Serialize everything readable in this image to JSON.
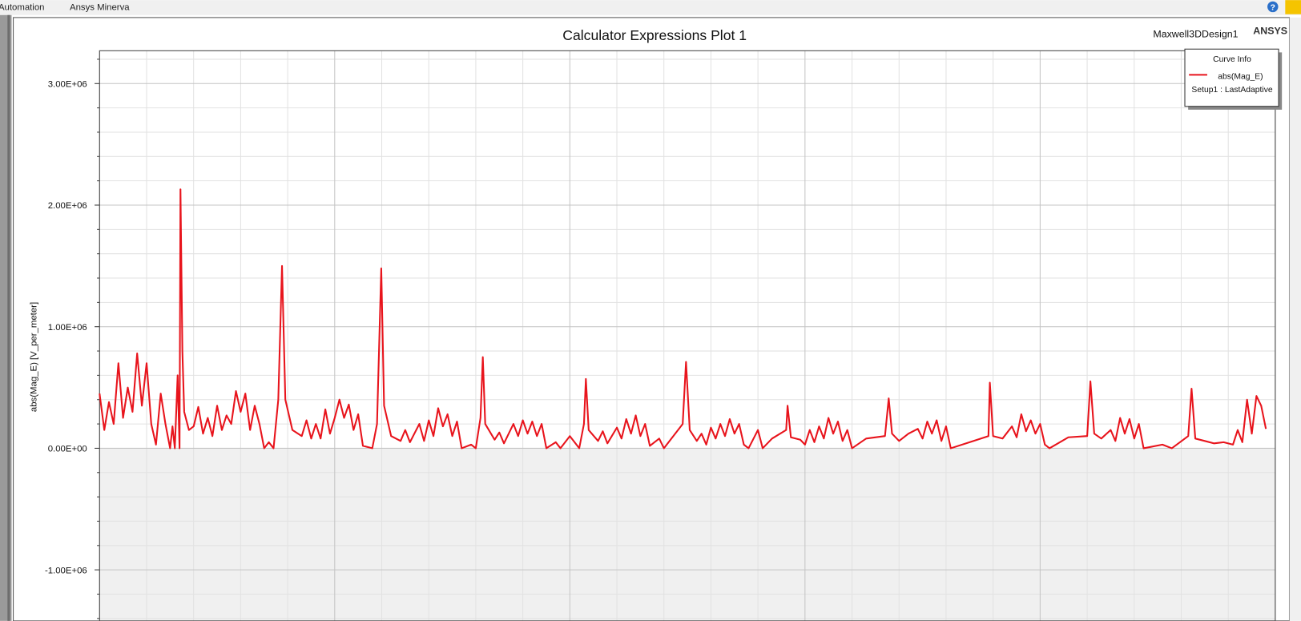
{
  "ui": {
    "menu": [
      "Automation",
      "Ansys Minerva"
    ],
    "design": "Maxwell3DDesign1",
    "logo": "ANSYS"
  },
  "chart_data": {
    "type": "line",
    "title": "Calculator Expressions Plot 1",
    "y_label": "abs(Mag_E) [V_per_meter]",
    "legend_title": "Curve Info",
    "grid": true,
    "ylim": [
      -1420000,
      3270000
    ],
    "yticks": [
      {
        "value": -1000000,
        "label": "-1.00E+06"
      },
      {
        "value": 0,
        "label": "0.00E+00"
      },
      {
        "value": 1000000,
        "label": "1.00E+06"
      },
      {
        "value": 2000000,
        "label": "2.00E+06"
      },
      {
        "value": 3000000,
        "label": "3.00E+06"
      }
    ],
    "yminor": [
      -1400000,
      -1200000,
      -800000,
      -600000,
      -400000,
      -200000,
      200000,
      400000,
      600000,
      800000,
      1200000,
      1400000,
      1600000,
      1800000,
      2200000,
      2400000,
      2600000,
      2800000,
      3200000
    ],
    "xlim": [
      0,
      25
    ],
    "xticks": [
      0,
      5,
      10,
      15,
      20,
      25
    ],
    "xminor": [
      1,
      2,
      3,
      4,
      6,
      7,
      8,
      9,
      11,
      12,
      13,
      14,
      16,
      17,
      18,
      19,
      21,
      22,
      23,
      24
    ],
    "below_zero_fill": "#f0f0f0",
    "x": [
      0,
      0.1,
      0.2,
      0.3,
      0.4,
      0.5,
      0.6,
      0.7,
      0.8,
      0.9,
      1.0,
      1.1,
      1.2,
      1.3,
      1.4,
      1.5,
      1.55,
      1.6,
      1.66,
      1.7,
      1.72,
      1.76,
      1.8,
      1.9,
      2.0,
      2.1,
      2.2,
      2.3,
      2.4,
      2.5,
      2.6,
      2.7,
      2.8,
      2.9,
      3.0,
      3.1,
      3.2,
      3.3,
      3.4,
      3.5,
      3.6,
      3.7,
      3.8,
      3.88,
      3.95,
      4.1,
      4.3,
      4.4,
      4.5,
      4.6,
      4.7,
      4.8,
      4.9,
      5.0,
      5.1,
      5.2,
      5.3,
      5.4,
      5.5,
      5.6,
      5.8,
      5.9,
      5.99,
      6.05,
      6.2,
      6.4,
      6.5,
      6.6,
      6.8,
      6.9,
      7.0,
      7.1,
      7.2,
      7.3,
      7.4,
      7.5,
      7.6,
      7.7,
      7.9,
      8.0,
      8.1,
      8.15,
      8.2,
      8.4,
      8.5,
      8.6,
      8.8,
      8.9,
      9.0,
      9.1,
      9.2,
      9.3,
      9.4,
      9.5,
      9.7,
      9.8,
      10.0,
      10.2,
      10.3,
      10.34,
      10.4,
      10.6,
      10.7,
      10.8,
      11.0,
      11.1,
      11.2,
      11.3,
      11.4,
      11.5,
      11.6,
      11.7,
      11.9,
      12.0,
      12.2,
      12.4,
      12.47,
      12.55,
      12.7,
      12.8,
      12.9,
      13.0,
      13.1,
      13.2,
      13.3,
      13.4,
      13.5,
      13.6,
      13.7,
      13.8,
      14.0,
      14.1,
      14.3,
      14.6,
      14.63,
      14.7,
      14.9,
      15.0,
      15.1,
      15.2,
      15.3,
      15.4,
      15.5,
      15.6,
      15.7,
      15.8,
      15.9,
      16.0,
      16.3,
      16.7,
      16.78,
      16.85,
      17.0,
      17.2,
      17.4,
      17.5,
      17.6,
      17.7,
      17.8,
      17.9,
      18.0,
      18.1,
      18.5,
      18.9,
      18.93,
      19.0,
      19.2,
      19.4,
      19.5,
      19.6,
      19.7,
      19.8,
      19.9,
      20.0,
      20.1,
      20.2,
      20.6,
      21.0,
      21.07,
      21.15,
      21.3,
      21.5,
      21.6,
      21.7,
      21.8,
      21.9,
      22.0,
      22.1,
      22.2,
      22.6,
      22.8,
      23.15,
      23.22,
      23.3,
      23.5,
      23.7,
      23.9,
      24.1,
      24.2,
      24.3,
      24.4,
      24.5,
      24.6,
      24.7,
      24.8
    ],
    "series": [
      {
        "name": "abs(Mag_E)",
        "solution": "Setup1 : LastAdaptive",
        "color": "#e8141c",
        "values": [
          450000,
          150000,
          380000,
          200000,
          700000,
          250000,
          500000,
          300000,
          780000,
          350000,
          700000,
          200000,
          30000,
          450000,
          200000,
          0,
          180000,
          0,
          600000,
          0,
          2130000,
          800000,
          300000,
          150000,
          180000,
          340000,
          120000,
          250000,
          100000,
          350000,
          150000,
          270000,
          200000,
          470000,
          300000,
          450000,
          150000,
          350000,
          200000,
          0,
          50000,
          0,
          400000,
          1500000,
          400000,
          150000,
          100000,
          230000,
          80000,
          200000,
          80000,
          320000,
          120000,
          250000,
          400000,
          250000,
          360000,
          150000,
          280000,
          20000,
          0,
          200000,
          1480000,
          350000,
          100000,
          60000,
          150000,
          50000,
          200000,
          60000,
          230000,
          100000,
          330000,
          180000,
          280000,
          100000,
          220000,
          0,
          30000,
          0,
          250000,
          750000,
          200000,
          70000,
          130000,
          40000,
          200000,
          100000,
          230000,
          120000,
          220000,
          100000,
          200000,
          0,
          50000,
          0,
          100000,
          0,
          200000,
          570000,
          150000,
          60000,
          140000,
          40000,
          170000,
          80000,
          240000,
          120000,
          270000,
          100000,
          200000,
          20000,
          80000,
          0,
          100000,
          200000,
          710000,
          150000,
          60000,
          120000,
          30000,
          170000,
          80000,
          200000,
          100000,
          240000,
          120000,
          200000,
          30000,
          0,
          150000,
          0,
          80000,
          150000,
          350000,
          90000,
          70000,
          30000,
          150000,
          50000,
          180000,
          80000,
          250000,
          120000,
          220000,
          60000,
          150000,
          0,
          80000,
          100000,
          410000,
          120000,
          60000,
          120000,
          160000,
          80000,
          220000,
          120000,
          230000,
          60000,
          180000,
          0,
          50000,
          100000,
          540000,
          100000,
          80000,
          180000,
          90000,
          280000,
          140000,
          230000,
          120000,
          200000,
          30000,
          0,
          90000,
          100000,
          550000,
          120000,
          80000,
          150000,
          60000,
          250000,
          120000,
          240000,
          80000,
          200000,
          0,
          30000,
          0,
          100000,
          490000,
          80000,
          60000,
          40000,
          50000,
          30000,
          150000,
          50000,
          400000,
          120000,
          430000,
          350000,
          160000
        ]
      }
    ]
  }
}
